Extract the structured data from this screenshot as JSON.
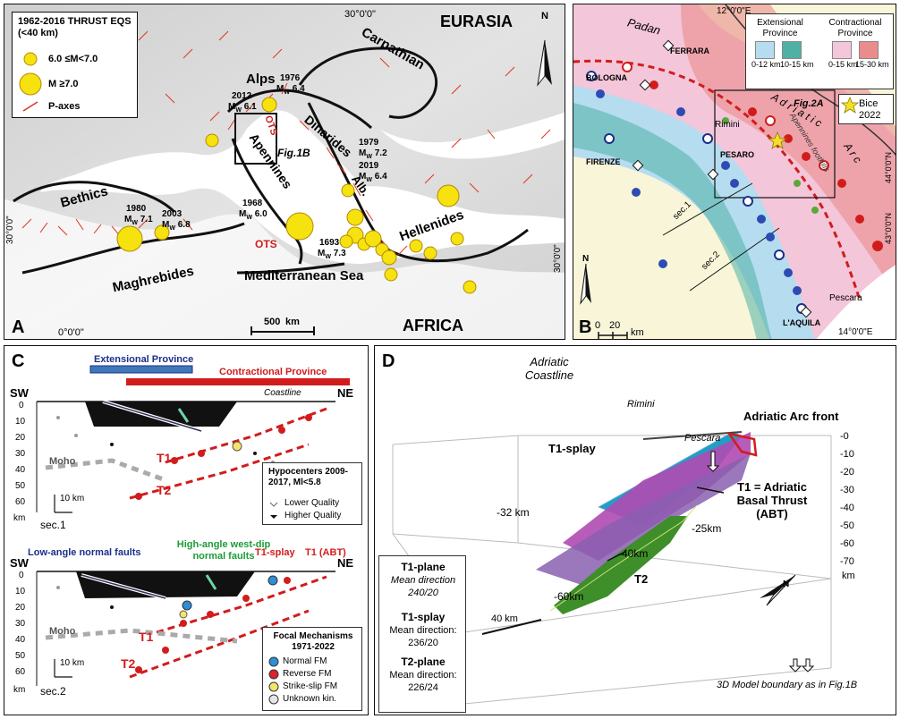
{
  "panelA": {
    "letter": "A",
    "legend_title": "1962-2016 THRUST EQS (<40 km)",
    "legend_items": [
      "6.0 ≤M<7.0",
      "M ≥7.0",
      "P-axes"
    ],
    "top_lon": "30°0'0\"",
    "bottom_lon": "0°0'0\"",
    "left_lat": "30°0'0\"",
    "right_lat": "30°0'0\"",
    "north": "N",
    "regions": {
      "eurasia": "EURASIA",
      "africa": "AFRICA",
      "med_sea": "Mediterranean Sea"
    },
    "ranges": {
      "alps": "Alps",
      "carpathian": "Carpathian",
      "dinarides": "Dinarides",
      "apennines": "Apennines",
      "bethics": "Bethics",
      "maghrebides": "Maghrebides",
      "hellenides": "Hellenides",
      "alb": "Alb.",
      "ots1": "OTS",
      "ots2": "OTS",
      "fig1b": "Fig.1B"
    },
    "events": [
      {
        "year": "1976",
        "mag": "6.4"
      },
      {
        "year": "2012",
        "mag": "6.1"
      },
      {
        "year": "1979",
        "mag": "7.2"
      },
      {
        "year": "2019",
        "mag": "6.4"
      },
      {
        "year": "1968",
        "mag": "6.0"
      },
      {
        "year": "1693",
        "mag": "7.3"
      },
      {
        "year": "1980",
        "mag": "7.1"
      },
      {
        "year": "2003",
        "mag": "6.8"
      }
    ],
    "mw_label": "M",
    "mw_sub": "W",
    "scale_value": "500",
    "scale_unit": "km"
  },
  "panelB": {
    "letter": "B",
    "top_lon": "12°0'0\"E",
    "bottom_lon": "14°0'0\"E",
    "lat_44": "44°0'0\"N",
    "lat_43": "43°0'0\"N",
    "padan": "Padan",
    "adriatic": "A  d  r  i  a  t  i  c",
    "arc": "A  r  c",
    "apennines_foothills": "Apennines foothills",
    "cities": [
      "FERRARA",
      "BOLOGNA",
      "Rimini",
      "FIRENZE",
      "PESARO",
      "Pescara",
      "L'AQUILA"
    ],
    "sections": [
      "sec.1",
      "sec.2"
    ],
    "fig2a": "Fig.2A",
    "legend": {
      "extensional": "Extensional Province",
      "contractional": "Contractional Province",
      "ext_ranges": [
        "0-12 km",
        "10-15 km"
      ],
      "con_ranges": [
        "0-15 km",
        "15-30 km"
      ],
      "bice": "Bice 2022"
    },
    "scale_values": [
      "0",
      "20"
    ],
    "scale_unit": "km",
    "north": "N",
    "colors": {
      "ext_light": "#b6dcf0",
      "ext_dark": "#4fb0a6",
      "con_light": "#f4c6d9",
      "con_dark": "#ea8c8c"
    }
  },
  "panelC": {
    "letter": "C",
    "ext_label": "Extensional Province",
    "con_label": "Contractional Province",
    "sw": "SW",
    "ne": "NE",
    "coastline": "Coastline",
    "depth_ticks_1": [
      "0",
      "10",
      "20",
      "30",
      "40",
      "50",
      "60"
    ],
    "depth_ticks_2": [
      "0",
      "10",
      "20",
      "30",
      "40",
      "50",
      "60"
    ],
    "depth_unit": "km",
    "moho": "Moho",
    "t1": "T1",
    "t2": "T2",
    "sec1": "sec.1",
    "sec2": "sec.2",
    "scale": "10 km",
    "hypo_title": "Hypocenters 2009-2017, Ml<5.8",
    "hypo_items": [
      "Lower Quality",
      "Higher Quality"
    ],
    "lanf": "Low-angle normal faults",
    "hawd": "High-angle west-dip normal faults",
    "t1splay": "T1-splay",
    "t1abt": "T1 (ABT)",
    "fm_title": "Focal Mechanisms 1971-2022",
    "fm_items": [
      "Normal FM",
      "Reverse FM",
      "Strike-slip FM",
      "Unknown kin."
    ],
    "fm_colors": [
      "#2d8fd6",
      "#d9262c",
      "#f3e56a",
      "#e6e6e6"
    ]
  },
  "panelD": {
    "letter": "D",
    "coast_title": "Adriatic Coastline",
    "rimini": "Rimini",
    "pescara": "Pescara",
    "arc_front": "Adriatic Arc front",
    "t1_splay": "T1-splay",
    "t1_abt": "T1 = Adriatic Basal Thrust (ABT)",
    "t2": "T2",
    "depth_labels": [
      "-32 km",
      "-25km",
      "-40km",
      "-60km"
    ],
    "axis_ticks": [
      "-0",
      "-10",
      "-20",
      "-30",
      "-40",
      "-50",
      "-60",
      "-70"
    ],
    "axis_unit": "km",
    "scale": "40 km",
    "north": "N",
    "boundary_note": "3D Model boundary as in Fig.1B",
    "info": {
      "t1_plane": "T1-plane",
      "t1_plane_dir_label": "Mean direction",
      "t1_plane_dir": "240/20",
      "t1_splay": "T1-splay",
      "t1_splay_dir_label": "Mean direction:",
      "t1_splay_dir": "236/20",
      "t2_plane": "T2-plane",
      "t2_plane_dir_label": "Mean direction:",
      "t2_plane_dir": "226/24"
    }
  }
}
